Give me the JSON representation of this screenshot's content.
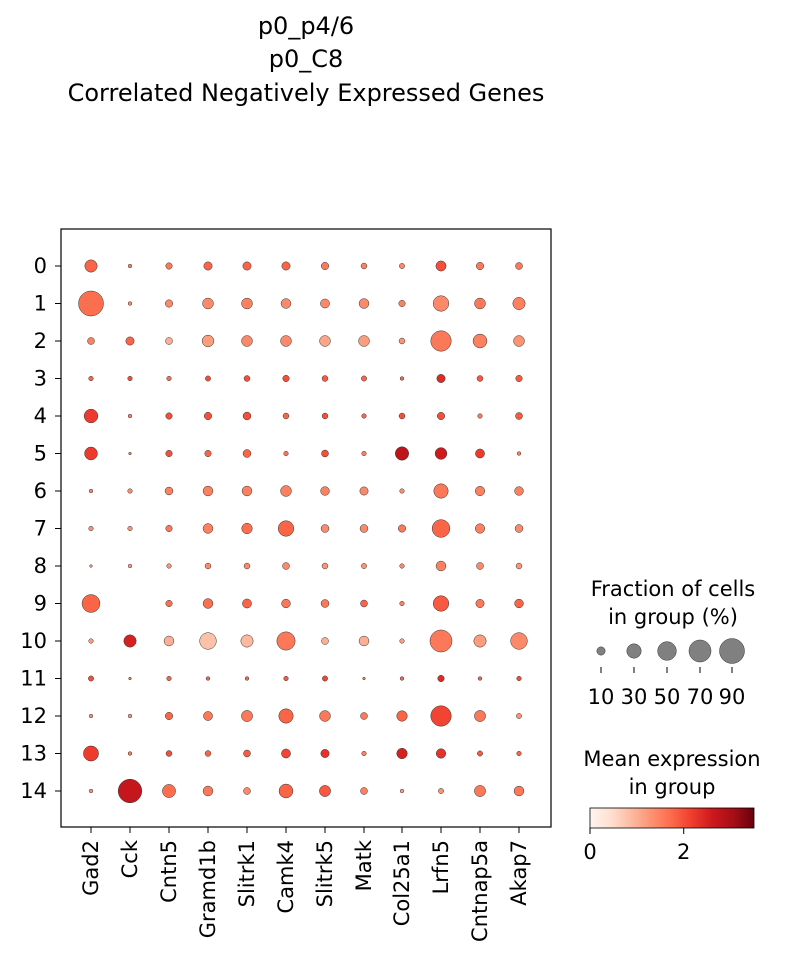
{
  "chart_data": {
    "type": "dotplot",
    "title_lines": [
      "p0_p4/6",
      "p0_C8",
      "Correlated Negatively Expressed Genes"
    ],
    "genes": [
      "Gad2",
      "Cck",
      "Cntn5",
      "Gramd1b",
      "Slitrk1",
      "Camk4",
      "Slitrk5",
      "Matk",
      "Col25a1",
      "Lrfn5",
      "Cntnap5a",
      "Akap7"
    ],
    "groups": [
      "0",
      "1",
      "2",
      "3",
      "4",
      "5",
      "6",
      "7",
      "8",
      "9",
      "10",
      "11",
      "12",
      "13",
      "14"
    ],
    "fraction": [
      [
        22,
        2,
        6,
        10,
        10,
        10,
        8,
        5,
        4,
        15,
        8,
        7
      ],
      [
        90,
        2,
        8,
        17,
        17,
        14,
        12,
        14,
        6,
        35,
        17,
        22
      ],
      [
        7,
        10,
        7,
        20,
        17,
        17,
        17,
        17,
        5,
        60,
        28,
        17
      ],
      [
        3,
        3,
        3,
        4,
        5,
        6,
        5,
        4,
        2,
        10,
        5,
        6
      ],
      [
        27,
        2,
        6,
        8,
        9,
        5,
        5,
        3,
        5,
        8,
        3,
        7
      ],
      [
        24,
        1,
        6,
        6,
        9,
        3,
        7,
        3,
        26,
        20,
        12,
        2
      ],
      [
        2,
        3,
        9,
        14,
        14,
        17,
        11,
        10,
        3,
        30,
        13,
        11
      ],
      [
        3,
        3,
        6,
        14,
        16,
        35,
        9,
        9,
        8,
        45,
        13,
        9
      ],
      [
        1,
        2,
        3,
        5,
        5,
        7,
        5,
        4,
        3,
        14,
        7,
        5
      ],
      [
        46,
        0,
        6,
        14,
        12,
        11,
        9,
        7,
        3,
        35,
        10,
        11
      ],
      [
        3,
        22,
        14,
        40,
        22,
        48,
        7,
        14,
        3,
        70,
        22,
        40
      ],
      [
        4,
        1,
        3,
        2,
        2,
        3,
        4,
        1,
        2,
        6,
        2,
        3
      ],
      [
        2,
        2,
        8,
        12,
        18,
        30,
        17,
        7,
        16,
        60,
        18,
        4
      ],
      [
        33,
        2,
        5,
        5,
        7,
        12,
        10,
        3,
        16,
        13,
        4,
        3
      ],
      [
        2,
        80,
        25,
        14,
        7,
        28,
        18,
        7,
        2,
        4,
        18,
        14
      ]
    ],
    "expression": [
      [
        1.8,
        1.5,
        1.6,
        1.8,
        1.8,
        1.8,
        1.6,
        1.5,
        1.4,
        2.0,
        1.6,
        1.6
      ],
      [
        1.7,
        1.4,
        1.4,
        1.4,
        1.5,
        1.4,
        1.4,
        1.4,
        1.5,
        1.4,
        1.6,
        1.5
      ],
      [
        1.5,
        1.8,
        1.0,
        1.2,
        1.4,
        1.4,
        1.1,
        1.2,
        1.3,
        1.6,
        1.5,
        1.3
      ],
      [
        1.8,
        2.0,
        1.7,
        2.0,
        2.0,
        2.0,
        1.9,
        1.8,
        1.8,
        2.4,
        1.9,
        1.9
      ],
      [
        2.2,
        1.5,
        2.0,
        2.0,
        2.0,
        1.8,
        2.0,
        1.8,
        2.0,
        2.0,
        1.6,
        1.9
      ],
      [
        2.2,
        1.5,
        2.0,
        1.8,
        1.8,
        1.6,
        2.0,
        1.5,
        2.8,
        2.6,
        2.2,
        1.5
      ],
      [
        1.4,
        1.4,
        1.5,
        1.5,
        1.5,
        1.5,
        1.5,
        1.4,
        1.4,
        1.6,
        1.5,
        1.5
      ],
      [
        1.3,
        1.3,
        1.6,
        1.5,
        1.7,
        1.8,
        1.4,
        1.4,
        1.6,
        1.8,
        1.5,
        1.4
      ],
      [
        1.2,
        1.2,
        1.3,
        1.4,
        1.4,
        1.4,
        1.3,
        1.3,
        1.4,
        1.5,
        1.4,
        1.3
      ],
      [
        1.8,
        1.4,
        1.7,
        1.7,
        1.8,
        1.6,
        1.6,
        1.8,
        1.5,
        1.9,
        1.6,
        1.8
      ],
      [
        1.2,
        2.5,
        1.0,
        0.8,
        0.9,
        1.6,
        1.0,
        1.0,
        1.2,
        1.6,
        1.2,
        1.4
      ],
      [
        2.0,
        1.6,
        1.8,
        1.8,
        1.8,
        1.9,
        2.1,
        1.6,
        1.8,
        2.4,
        1.8,
        2.0
      ],
      [
        1.3,
        1.3,
        1.8,
        1.6,
        1.6,
        1.8,
        1.6,
        1.6,
        1.8,
        2.1,
        1.6,
        1.3
      ],
      [
        2.2,
        1.6,
        2.0,
        1.8,
        1.9,
        2.1,
        2.3,
        1.5,
        2.5,
        2.3,
        1.9,
        1.8
      ],
      [
        1.3,
        2.7,
        1.7,
        1.6,
        1.4,
        1.8,
        1.9,
        1.5,
        1.2,
        1.3,
        1.6,
        1.6
      ]
    ],
    "size_legend": {
      "title_lines": [
        "Fraction of cells",
        "in group (%)"
      ],
      "values": [
        10,
        30,
        50,
        70,
        90
      ],
      "labels": [
        "10",
        "30",
        "50",
        "70",
        "90"
      ]
    },
    "color_legend": {
      "title_lines": [
        "Mean expression",
        "in group"
      ],
      "range": [
        0,
        3.5
      ],
      "ticks": [
        "0",
        "2"
      ],
      "colormap": "Reds",
      "colors": [
        "#fff5f0",
        "#fee0d2",
        "#fcbba1",
        "#fc9272",
        "#fb6a4a",
        "#ef3b2c",
        "#cb181d",
        "#a50f15",
        "#67000d"
      ]
    }
  }
}
